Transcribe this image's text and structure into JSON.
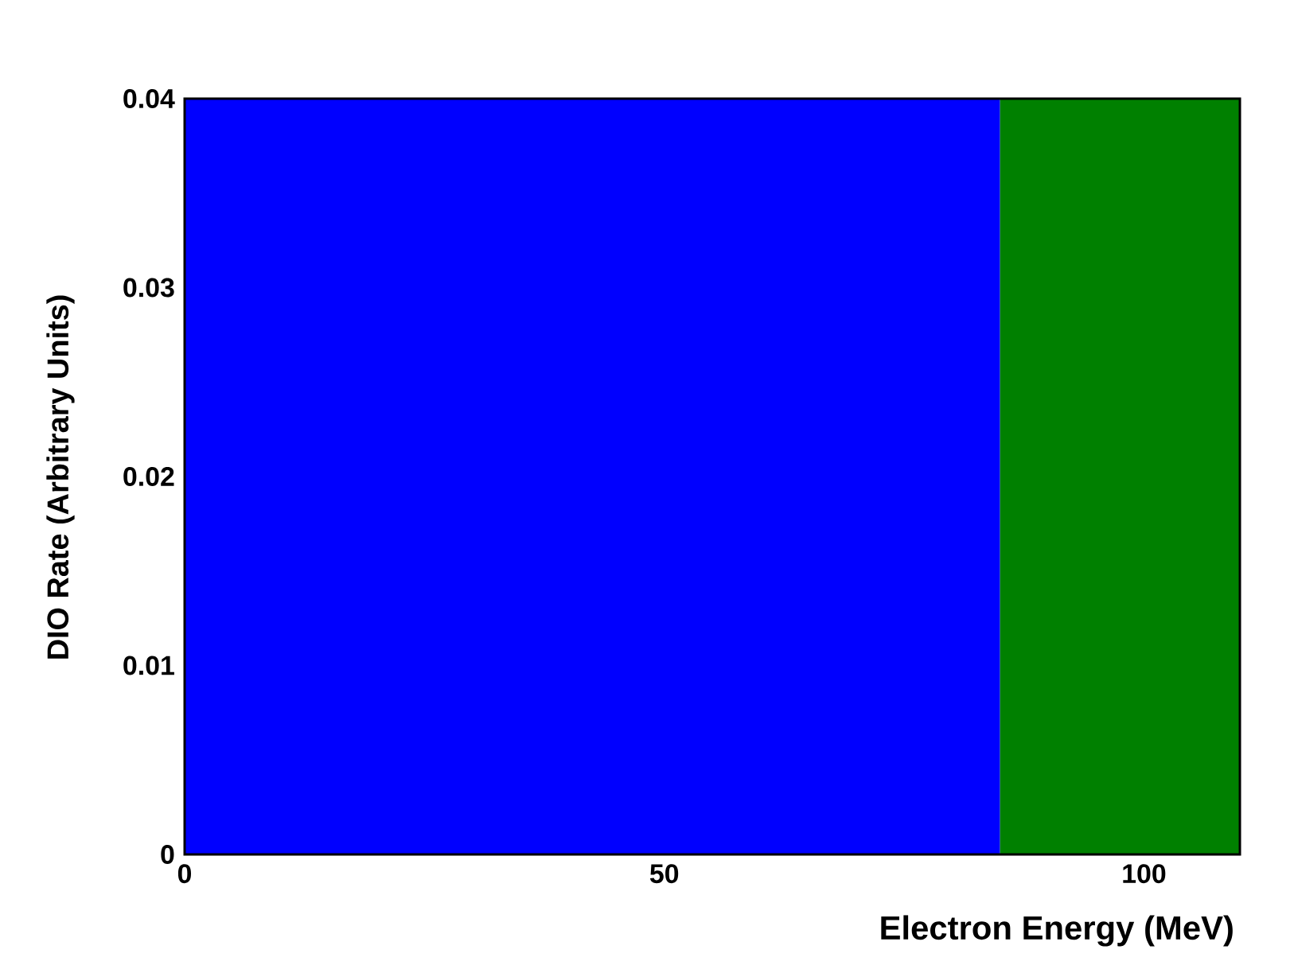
{
  "chart_data": {
    "type": "area",
    "xlabel": "Electron Energy (MeV)",
    "ylabel": "DIO Rate (Arbitrary Units)",
    "xlim": [
      0,
      110
    ],
    "ylim": [
      0,
      0.04
    ],
    "xticks": [
      0,
      50,
      100
    ],
    "yticks": [
      0,
      0.01,
      0.02,
      0.03,
      0.04
    ],
    "series": [
      {
        "color": "#0000ff",
        "x": [
          0,
          85
        ],
        "values": [
          0.04,
          0.04
        ]
      },
      {
        "color": "#008000",
        "x": [
          85,
          110
        ],
        "values": [
          0.04,
          0.04
        ]
      }
    ]
  }
}
